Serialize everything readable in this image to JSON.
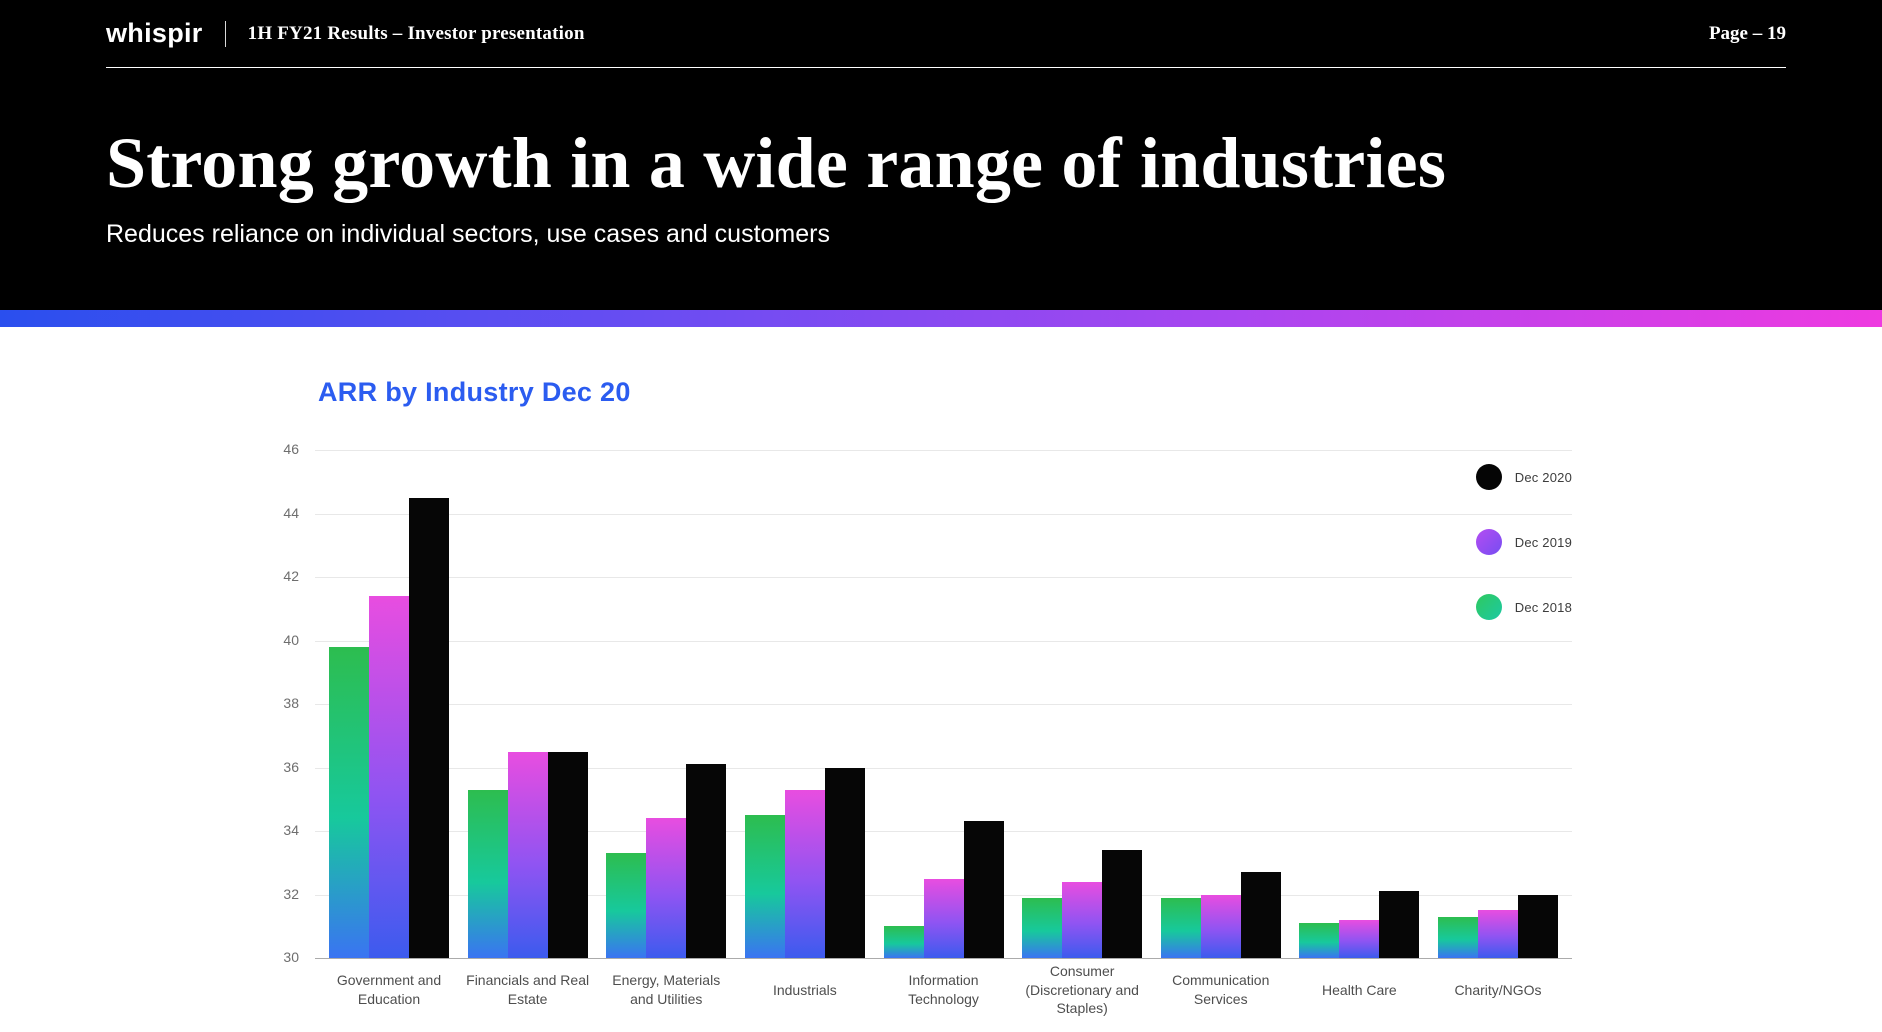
{
  "header": {
    "logo": "whispir",
    "deck_title": "1H FY21 Results – Investor presentation",
    "page_label": "Page – 19"
  },
  "hero": {
    "title": "Strong growth in a wide range of industries",
    "subtitle": "Reduces reliance on individual sectors, use cases and customers"
  },
  "divider": {
    "gradient": [
      "#2a4fee",
      "#6a4df2",
      "#a846f0",
      "#ee3ae0"
    ]
  },
  "chart_data": {
    "type": "bar",
    "title": "ARR by Industry Dec 20",
    "title_color": "#2b5cf0",
    "categories": [
      "Government and Education",
      "Financials and Real Estate",
      "Energy, Materials and Utilities",
      "Industrials",
      "Information Technology",
      "Consumer (Discretionary and Staples)",
      "Communication Services",
      "Health Care",
      "Charity/NGOs"
    ],
    "series": [
      {
        "name": "Dec 2018",
        "gradient": [
          "#2dbd4f 0%",
          "#17c99c 55%",
          "#3a74f2 100%"
        ],
        "values": [
          39.8,
          35.3,
          33.3,
          34.5,
          31.0,
          31.9,
          31.9,
          31.1,
          31.3
        ]
      },
      {
        "name": "Dec 2019",
        "gradient": [
          "#e84de0 0%",
          "#8f54f2 55%",
          "#3c5bee 100%"
        ],
        "values": [
          41.4,
          36.5,
          34.4,
          35.3,
          32.5,
          32.4,
          32.0,
          31.2,
          31.5
        ]
      },
      {
        "name": "Dec 2020",
        "gradient": [
          "#060606 0%",
          "#060606 100%"
        ],
        "values": [
          44.5,
          36.5,
          36.1,
          36.0,
          34.3,
          33.4,
          32.7,
          32.1,
          32.0
        ]
      }
    ],
    "ylim": [
      30,
      46
    ],
    "yticks": [
      30,
      32,
      34,
      36,
      38,
      40,
      42,
      44,
      46
    ],
    "grid": true,
    "legend_position": "top-right",
    "legend": [
      {
        "label": "Dec 2020",
        "gradient": [
          "#050505",
          "#050505"
        ]
      },
      {
        "label": "Dec 2019",
        "gradient": [
          "#b44df2",
          "#764df2"
        ]
      },
      {
        "label": "Dec 2018",
        "gradient": [
          "#2fc95e",
          "#1cc9a4"
        ]
      }
    ]
  }
}
